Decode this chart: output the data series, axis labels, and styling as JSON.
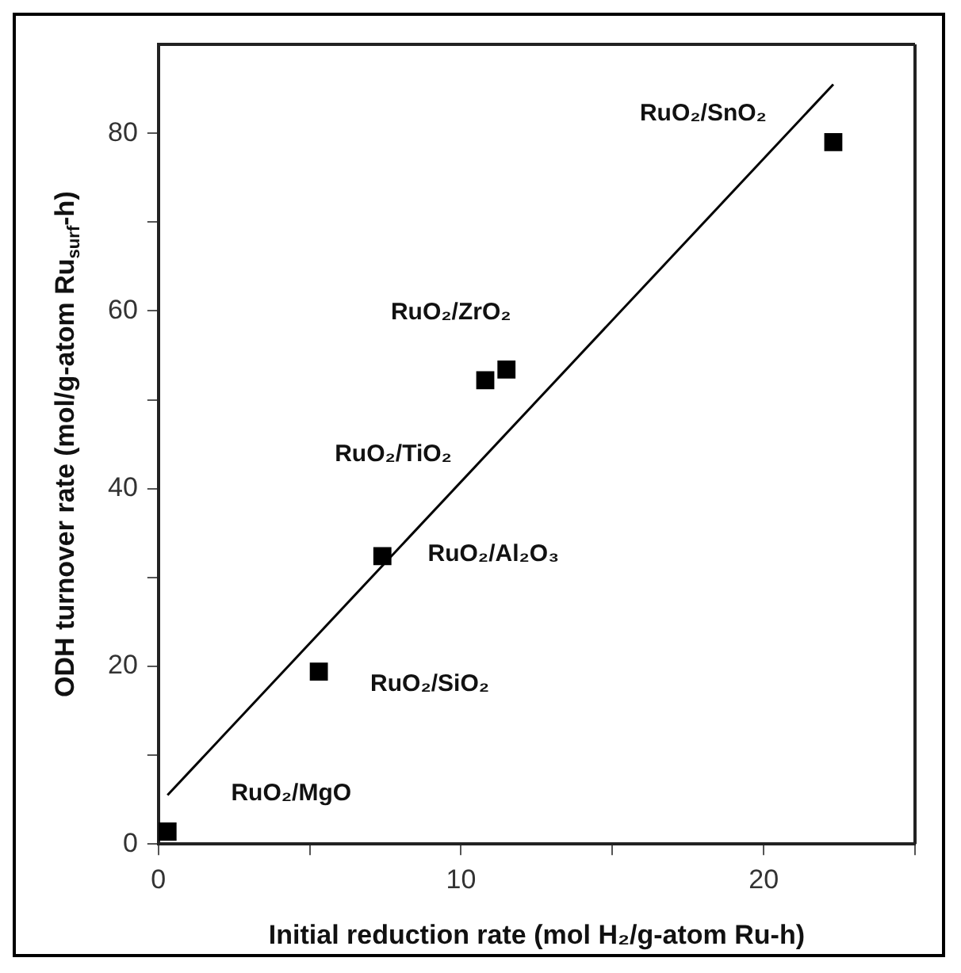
{
  "chart_data": {
    "type": "scatter",
    "xlabel": "Initial reduction rate (mol H₂/g-atom Ru-h)",
    "ylabel": "ODH turnover rate (mol/g-atom Ru$_{surf}$-h)",
    "xlim": [
      0,
      25
    ],
    "xticks": [
      0,
      {
        "value": 5,
        "label": null
      },
      10,
      {
        "value": 15,
        "label": null
      },
      20,
      {
        "value": 25,
        "label": null
      }
    ],
    "ylim": [
      0,
      90
    ],
    "yticks": [
      0,
      {
        "value": 10,
        "label": null
      },
      20,
      {
        "value": 30,
        "label": null
      },
      40,
      {
        "value": 50,
        "label": null
      },
      60,
      {
        "value": 70,
        "label": null
      },
      80
    ],
    "series": [
      {
        "color": "#000000",
        "marker": "square",
        "x": [
          0.3,
          5.3,
          7.4,
          10.8,
          11.5,
          22.3
        ],
        "values": [
          1.4,
          19.4,
          32.4,
          52.2,
          53.4,
          79.0
        ]
      },
      {
        "type": "line",
        "color": "#000000",
        "marker": "none",
        "line_style": "solid",
        "x": [
          0.3,
          22.3
        ],
        "values": [
          5.5,
          85.5
        ]
      }
    ],
    "annotations": [
      {
        "text": "RuO₂/SnO₂",
        "x": 22.3,
        "y": 79.0
      },
      {
        "text": "RuO₂/ZrO₂",
        "x": 11.5,
        "y": 53.4
      },
      {
        "text": "RuO₂/TiO₂",
        "x": 10.8,
        "y": 52.2
      },
      {
        "text": "RuO₂/Al₂O₃",
        "x": 7.4,
        "y": 32.4
      },
      {
        "text": "RuO₂/SiO₂",
        "x": 5.3,
        "y": 19.4
      },
      {
        "text": "RuO₂/MgO",
        "x": 0.3,
        "y": 1.4
      }
    ]
  }
}
